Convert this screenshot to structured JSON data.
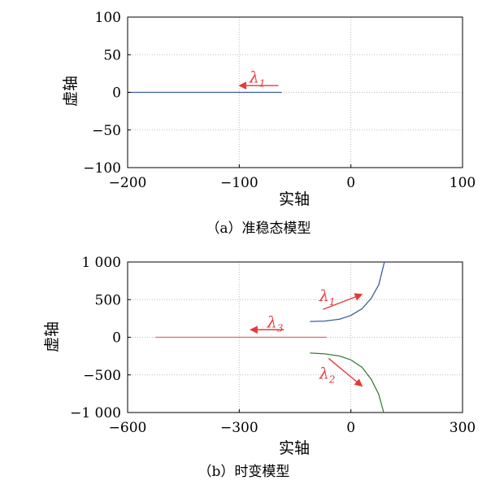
{
  "chart_data": [
    {
      "type": "line",
      "caption": "（a）准稳态模型",
      "xlabel": "实轴",
      "ylabel": "虚轴",
      "xlim": [
        -200,
        100
      ],
      "ylim": [
        -100,
        100
      ],
      "xticks": [
        -200,
        -100,
        0,
        100
      ],
      "xtick_labels": [
        "−200",
        "−100",
        "0",
        "100"
      ],
      "yticks": [
        100,
        50,
        0,
        -50,
        -100
      ],
      "ytick_labels": [
        "100",
        "50",
        "0",
        "−50",
        "−100"
      ],
      "grid": true,
      "series": [
        {
          "color": "#3b5ba5",
          "points": [
            [
              -200,
              0
            ],
            [
              -62,
              0
            ]
          ]
        }
      ],
      "annotations": [
        {
          "symbol": "λ",
          "sub": "1",
          "color": "#e63a3a",
          "label_at": [
            -91,
            13
          ],
          "arrow_from": [
            -65,
            9
          ],
          "arrow_to": [
            -100,
            9
          ]
        }
      ]
    },
    {
      "type": "line",
      "caption": "（b）时变模型",
      "xlabel": "实轴",
      "ylabel": "虚轴",
      "xlim": [
        -600,
        300
      ],
      "ylim": [
        -1000,
        1000
      ],
      "xticks": [
        -600,
        -300,
        0,
        300
      ],
      "xtick_labels": [
        "−600",
        "−300",
        "0",
        "300"
      ],
      "yticks": [
        1000,
        500,
        0,
        -500,
        -1000
      ],
      "ytick_labels": [
        "1 000",
        "500",
        "0",
        "−500",
        "−1 000"
      ],
      "grid": true,
      "series": [
        {
          "color": "#3b5ba5",
          "points": [
            [
              -110,
              210
            ],
            [
              -70,
              215
            ],
            [
              -30,
              240
            ],
            [
              0,
              290
            ],
            [
              30,
              380
            ],
            [
              55,
              520
            ],
            [
              75,
              700
            ],
            [
              90,
              1000
            ]
          ]
        },
        {
          "color": "#3a7d3a",
          "points": [
            [
              -110,
              -210
            ],
            [
              -70,
              -220
            ],
            [
              -30,
              -250
            ],
            [
              0,
              -300
            ],
            [
              30,
              -400
            ],
            [
              55,
              -560
            ],
            [
              75,
              -760
            ],
            [
              88,
              -1000
            ]
          ]
        },
        {
          "color": "#e06666",
          "points": [
            [
              -525,
              0
            ],
            [
              -65,
              0
            ]
          ]
        }
      ],
      "annotations": [
        {
          "symbol": "λ",
          "sub": "1",
          "color": "#e63a3a",
          "label_at": [
            -85,
            480
          ],
          "arrow_from": [
            -75,
            370
          ],
          "arrow_to": [
            30,
            570
          ]
        },
        {
          "symbol": "λ",
          "sub": "3",
          "color": "#e63a3a",
          "label_at": [
            -225,
            130
          ],
          "arrow_from": [
            -180,
            100
          ],
          "arrow_to": [
            -270,
            100
          ]
        },
        {
          "symbol": "λ",
          "sub": "2",
          "color": "#e63a3a",
          "label_at": [
            -85,
            -550
          ],
          "arrow_from": [
            -60,
            -280
          ],
          "arrow_to": [
            30,
            -650
          ]
        }
      ]
    }
  ]
}
